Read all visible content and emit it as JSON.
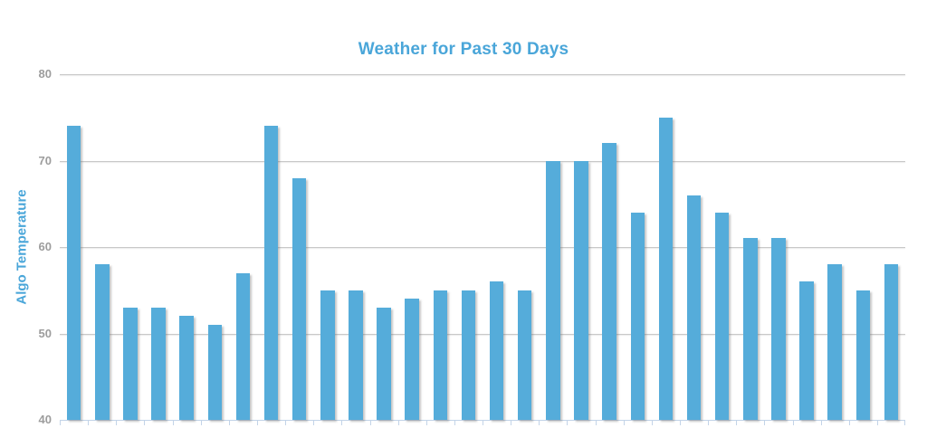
{
  "title": "Weather for Past 30 Days",
  "y_axis": {
    "label": "Algo Temperature",
    "tick_labels": [
      "80",
      "70",
      "60",
      "50",
      "40"
    ]
  },
  "x_axis": {
    "tick_labels_visible": false,
    "boundary_tick_count": 31
  },
  "chart_data": {
    "type": "bar",
    "title": "Weather for Past 30 Days",
    "xlabel": "",
    "ylabel": "Algo Temperature",
    "n_bars": 30,
    "values": [
      74,
      58,
      53,
      53,
      52,
      51,
      57,
      74,
      68,
      55,
      55,
      53,
      54,
      55,
      55,
      56,
      55,
      70,
      70,
      72,
      64,
      75,
      66,
      64,
      61,
      61,
      56,
      58,
      55,
      58
    ],
    "ylim": [
      40,
      80
    ],
    "yticks": [
      40,
      50,
      60,
      70,
      80
    ],
    "grid": true,
    "legend": "none",
    "bar_color": "#55acda"
  },
  "colors": {
    "bar": "#55acda",
    "title_text": "#4aa6d9",
    "grid_line": "#c8c8c8",
    "axis_line": "#c3d4e8",
    "tick_label_text": "#9d9d9d",
    "background": "#ffffff"
  }
}
